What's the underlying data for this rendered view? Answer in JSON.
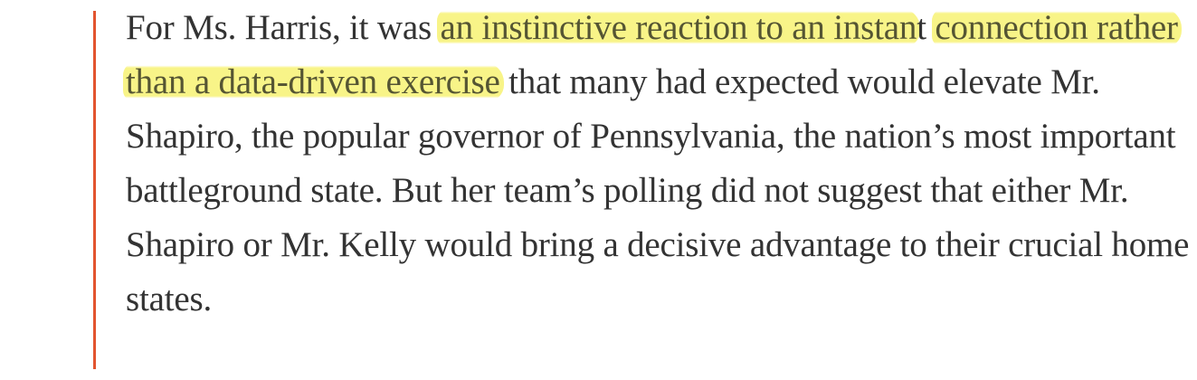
{
  "article": {
    "paragraph": {
      "before": "For Ms. Harris, it was ",
      "highlight_1": "an instinctive reaction to an instan",
      "mid": "t ",
      "highlight_2": "connection rather than a data-driven exercise",
      "after": " that many had expected would elevate Mr. Shapiro, the popular governor of Pennsylvania, the nation’s most important battleground state. But her team’s polling did not suggest that either Mr. Shapiro or Mr. Kelly would bring a decisive advantage to their crucial home states."
    },
    "colors": {
      "quote_bar": "#e2542f",
      "highlight": "#f8f382",
      "text": "#333333"
    }
  }
}
